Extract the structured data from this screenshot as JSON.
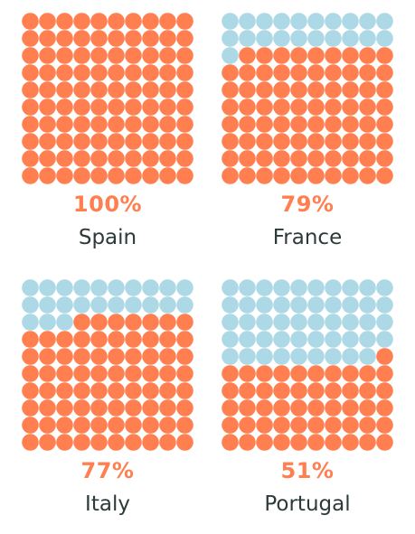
{
  "colors": {
    "filled": "#ff7f50",
    "empty": "#add8e6",
    "text": "#2d3a3a"
  },
  "chart_data": {
    "type": "waffle",
    "title": "",
    "grid": {
      "rows": 10,
      "cols": 10
    },
    "panels": [
      {
        "country": "Spain",
        "label": "100%",
        "value": 100
      },
      {
        "country": "France",
        "label": "79%",
        "value": 79
      },
      {
        "country": "Italy",
        "label": "77%",
        "value": 77
      },
      {
        "country": "Portugal",
        "label": "51%",
        "value": 51
      }
    ]
  }
}
